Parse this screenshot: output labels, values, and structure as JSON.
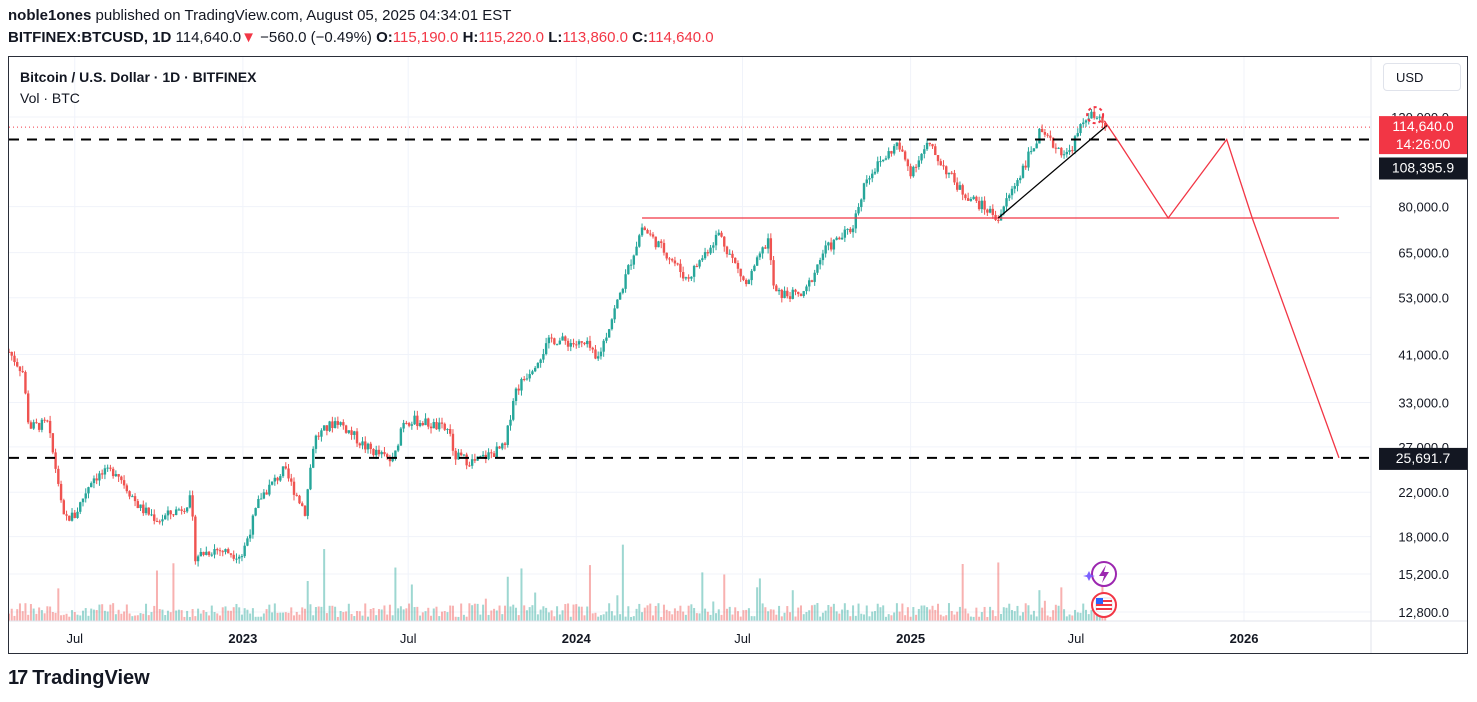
{
  "header": {
    "user": "noble1ones",
    "published": " published on TradingView.com, August 05, 2025 04:34:01 EST",
    "symbol": "BITFINEX:BTCUSD, 1D",
    "last": "114,640.0",
    "down_arrow": "▼",
    "change": "−560.0 (−0.49%)",
    "o_label": "O:",
    "o": "115,190.0",
    "h_label": "H:",
    "h": "115,220.0",
    "l_label": "L:",
    "l": "113,860.0",
    "c_label": "C:",
    "c": "114,640.0"
  },
  "legend": {
    "title": "Bitcoin / U.S. Dollar · 1D · BITFINEX",
    "vol": "Vol · BTC"
  },
  "currency_button": "USD",
  "brand": {
    "mark": "17",
    "name": "TradingView"
  },
  "colors": {
    "up": "#26a69a",
    "down": "#ef5350",
    "drawing": "#f23645",
    "price_tag": "#f23645",
    "level_tag": "#131722"
  },
  "price_axis": [
    "120,000.0",
    "80,000.0",
    "65,000.0",
    "53,000.0",
    "41,000.0",
    "33,000.0",
    "27,000.0",
    "22,000.0",
    "18,000.0",
    "15,200.0",
    "12,800.0"
  ],
  "price_tags": {
    "current": "114,640.0",
    "countdown": "14:26:00",
    "upper_level": "108,395.9",
    "lower_level": "25,691.7"
  },
  "time_axis": [
    "Jul",
    "2023",
    "Jul",
    "2024",
    "Jul",
    "2025",
    "Jul",
    "2026"
  ],
  "icons": [
    "lightning-event-icon",
    "us-flag-icon"
  ],
  "chart_data": {
    "type": "candlestick",
    "title": "Bitcoin / U.S. Dollar · 1D · BITFINEX",
    "y_scale": "log",
    "ylim": [
      12000,
      130000
    ],
    "x_range": [
      "2022-04-20",
      "2026-05-20"
    ],
    "close_series": [
      [
        "2022-04-20",
        41500
      ],
      [
        "2022-05-05",
        38000
      ],
      [
        "2022-05-12",
        29500
      ],
      [
        "2022-06-01",
        30000
      ],
      [
        "2022-06-13",
        23000
      ],
      [
        "2022-06-18",
        19500
      ],
      [
        "2022-07-01",
        19800
      ],
      [
        "2022-07-20",
        23500
      ],
      [
        "2022-08-15",
        24300
      ],
      [
        "2022-09-10",
        20500
      ],
      [
        "2022-10-01",
        19400
      ],
      [
        "2022-10-28",
        20600
      ],
      [
        "2022-11-05",
        21300
      ],
      [
        "2022-11-10",
        16500
      ],
      [
        "2022-12-01",
        17000
      ],
      [
        "2022-12-31",
        16550
      ],
      [
        "2023-01-20",
        21500
      ],
      [
        "2023-02-15",
        24300
      ],
      [
        "2023-03-10",
        20200
      ],
      [
        "2023-03-20",
        28000
      ],
      [
        "2023-04-14",
        30500
      ],
      [
        "2023-05-15",
        27000
      ],
      [
        "2023-06-15",
        25200
      ],
      [
        "2023-06-25",
        30500
      ],
      [
        "2023-07-15",
        30300
      ],
      [
        "2023-08-16",
        29000
      ],
      [
        "2023-08-18",
        26000
      ],
      [
        "2023-09-11",
        25200
      ],
      [
        "2023-10-15",
        27000
      ],
      [
        "2023-10-25",
        34500
      ],
      [
        "2023-12-05",
        44000
      ],
      [
        "2024-01-15",
        42500
      ],
      [
        "2024-01-23",
        39500
      ],
      [
        "2024-02-15",
        52000
      ],
      [
        "2024-03-13",
        73000
      ],
      [
        "2024-04-15",
        63000
      ],
      [
        "2024-05-01",
        57500
      ],
      [
        "2024-06-05",
        71000
      ],
      [
        "2024-07-05",
        56000
      ],
      [
        "2024-07-29",
        69000
      ],
      [
        "2024-08-05",
        54000
      ],
      [
        "2024-09-06",
        53500
      ],
      [
        "2024-09-28",
        65500
      ],
      [
        "2024-10-29",
        72500
      ],
      [
        "2024-11-13",
        91000
      ],
      [
        "2024-12-17",
        106000
      ],
      [
        "2025-01-01",
        94000
      ],
      [
        "2025-01-20",
        106000
      ],
      [
        "2025-02-25",
        86000
      ],
      [
        "2025-04-07",
        76000
      ],
      [
        "2025-05-22",
        111000
      ],
      [
        "2025-06-22",
        101000
      ],
      [
        "2025-07-14",
        122000
      ],
      [
        "2025-08-04",
        114640
      ]
    ],
    "levels": [
      {
        "name": "resistance",
        "value": 108395.9,
        "style": "dashed"
      },
      {
        "name": "support",
        "value": 25691.7,
        "style": "dashed"
      },
      {
        "name": "horizontal",
        "value": 76000,
        "from": "2024-03-13",
        "to": "2026-04-15"
      }
    ],
    "trendline": [
      [
        "2025-04-07",
        76000
      ],
      [
        "2025-08-04",
        115500
      ]
    ],
    "projection_path": [
      [
        "2025-08-01",
        118000
      ],
      [
        "2025-08-15",
        108395.9
      ],
      [
        "2025-10-10",
        76000
      ],
      [
        "2025-12-13",
        108395.9
      ],
      [
        "2026-01-10",
        76000
      ],
      [
        "2026-04-15",
        25691.7
      ]
    ],
    "circle_marker": [
      "2025-07-22",
      121000
    ]
  }
}
